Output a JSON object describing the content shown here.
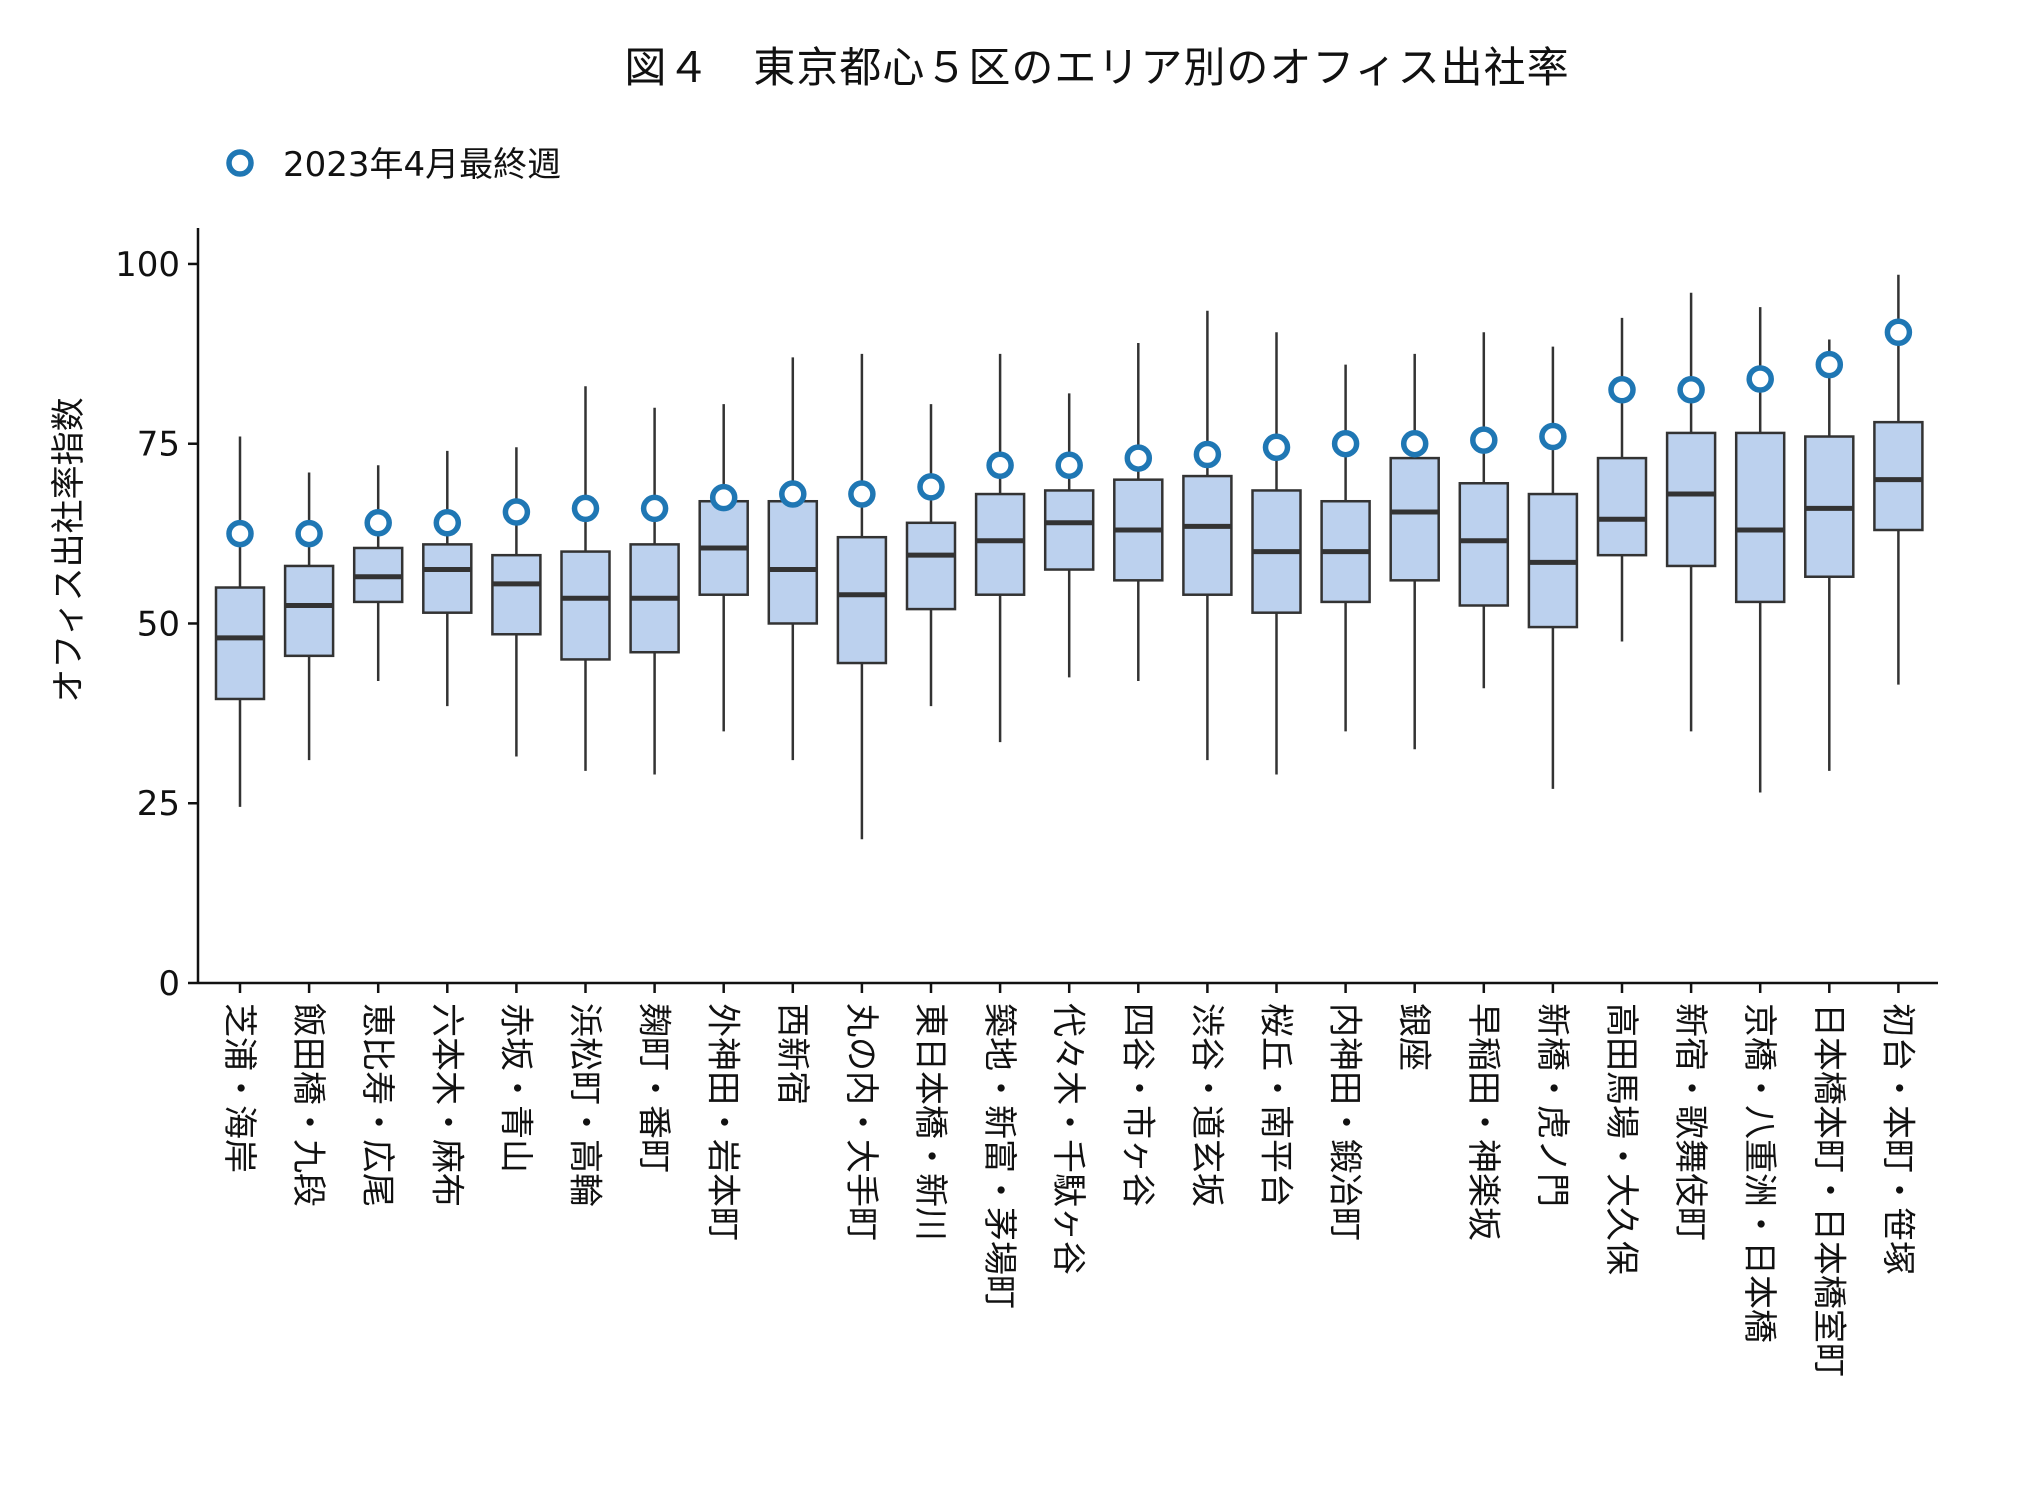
{
  "title": "図４　東京都心５区のエリア別のオフィス出社率",
  "colors": {
    "box_fill": "#bcd1ee",
    "box_stroke": "#333333",
    "median": "#333333",
    "marker": "#1f77b4",
    "axis": "#111111"
  },
  "legend": {
    "position": "top-left",
    "entries": [
      "2023年4月最終週"
    ]
  },
  "chart_data": {
    "type": "box",
    "title": "図４　東京都心５区のエリア別のオフィス出社率",
    "ylabel": "オフィス出社率指数",
    "xlabel": "",
    "ylim": [
      0,
      105
    ],
    "yticks": [
      0,
      25,
      50,
      75,
      100
    ],
    "grid": false,
    "categories": [
      "芝浦・海岸",
      "飯田橋・九段",
      "恵比寿・広尾",
      "六本木・麻布",
      "赤坂・青山",
      "浜松町・高輪",
      "麹町・番町",
      "外神田・岩本町",
      "西新宿",
      "丸の内・大手町",
      "東日本橋・新川",
      "築地・新富・茅場町",
      "代々木・千駄ヶ谷",
      "四谷・市ヶ谷",
      "渋谷・道玄坂",
      "桜丘・南平台",
      "内神田・鍛冶町",
      "銀座",
      "早稲田・神楽坂",
      "新橋・虎ノ門",
      "高田馬場・大久保",
      "新宿・歌舞伎町",
      "京橋・八重洲・日本橋",
      "日本橋本町・日本橋室町",
      "初台・本町・笹塚"
    ],
    "series": [
      {
        "type": "box",
        "whisker_low": [
          24.5,
          31,
          42,
          38.5,
          31.5,
          29.5,
          29,
          35,
          31,
          20,
          38.5,
          33.5,
          42.5,
          42,
          31,
          29,
          35,
          32.5,
          41,
          27,
          47.5,
          35,
          26.5,
          29.5,
          41.5
        ],
        "q1": [
          39.5,
          45.5,
          53,
          51.5,
          48.5,
          45,
          46,
          54,
          50,
          44.5,
          52,
          54,
          57.5,
          56,
          54,
          51.5,
          53,
          56,
          52.5,
          49.5,
          59.5,
          58,
          53,
          56.5,
          63
        ],
        "median": [
          48,
          52.5,
          56.5,
          57.5,
          55.5,
          53.5,
          53.5,
          60.5,
          57.5,
          54,
          59.5,
          61.5,
          64,
          63,
          63.5,
          60,
          60,
          65.5,
          61.5,
          58.5,
          64.5,
          68,
          63,
          66,
          70
        ],
        "q3": [
          55,
          58,
          60.5,
          61,
          59.5,
          60,
          61,
          67,
          67,
          62,
          64,
          68,
          68.5,
          70,
          70.5,
          68.5,
          67,
          73,
          69.5,
          68,
          73,
          76.5,
          76.5,
          76,
          78
        ],
        "whisker_high": [
          76,
          71,
          72,
          74,
          74.5,
          83,
          80,
          80.5,
          87,
          87.5,
          80.5,
          87.5,
          82,
          89,
          93.5,
          90.5,
          86,
          87.5,
          90.5,
          88.5,
          92.5,
          96,
          94,
          89.5,
          98.5
        ]
      },
      {
        "name": "2023年4月最終週",
        "type": "scatter",
        "values": [
          62.5,
          62.5,
          64,
          64,
          65.5,
          66,
          66,
          67.5,
          68,
          68,
          69,
          72,
          72,
          73,
          73.5,
          74.5,
          75,
          75,
          75.5,
          76,
          82.5,
          82.5,
          84,
          86,
          90.5
        ]
      }
    ]
  }
}
